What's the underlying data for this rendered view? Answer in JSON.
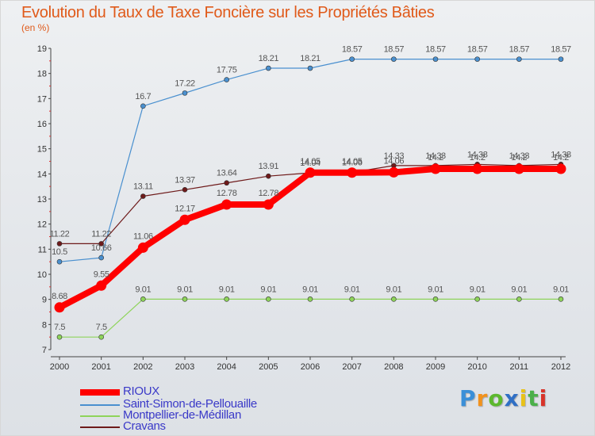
{
  "chart_data": {
    "type": "line",
    "title": "Evolution du Taux de Taxe Foncière sur les Propriétés Bâties",
    "subtitle": "(en %)",
    "x": [
      "2000",
      "2001",
      "2002",
      "2003",
      "2004",
      "2005",
      "2006",
      "2007",
      "2008",
      "2009",
      "2010",
      "2011",
      "2012"
    ],
    "ylim": [
      7,
      19
    ],
    "yticks": [
      "7",
      "8",
      "9",
      "10",
      "11",
      "12",
      "13",
      "14",
      "15",
      "16",
      "17",
      "18",
      "19"
    ],
    "series": [
      {
        "name": "RIOUX",
        "color": "#ff0000",
        "values": [
          8.68,
          9.55,
          11.06,
          12.17,
          12.78,
          12.78,
          14.05,
          14.05,
          14.06,
          14.2,
          14.2,
          14.2,
          14.2
        ],
        "labels": [
          "8.68",
          "9.55",
          "11.06",
          "12.17",
          "12.78",
          "12.78",
          "14.05",
          "14.05",
          "14.06",
          "14.2",
          "14.2",
          "14.2",
          "14.2"
        ]
      },
      {
        "name": "Saint-Simon-de-Pellouaille",
        "color": "#4a90cf",
        "values": [
          10.5,
          10.66,
          16.7,
          17.22,
          17.75,
          18.21,
          18.21,
          18.57,
          18.57,
          18.57,
          18.57,
          18.57,
          18.57
        ],
        "labels": [
          "10.5",
          "10.66",
          "16.7",
          "17.22",
          "17.75",
          "18.21",
          "18.21",
          "18.57",
          "18.57",
          "18.57",
          "18.57",
          "18.57",
          "18.57"
        ]
      },
      {
        "name": "Montpellier-de-Médillan",
        "color": "#8ed45a",
        "values": [
          7.5,
          7.5,
          9.01,
          9.01,
          9.01,
          9.01,
          9.01,
          9.01,
          9.01,
          9.01,
          9.01,
          9.01,
          9.01
        ],
        "labels": [
          "7.5",
          "7.5",
          "9.01",
          "9.01",
          "9.01",
          "9.01",
          "9.01",
          "9.01",
          "9.01",
          "9.01",
          "9.01",
          "9.01",
          "9.01"
        ]
      },
      {
        "name": "Cravans",
        "color": "#6e1a1a",
        "values": [
          11.22,
          11.22,
          13.11,
          13.37,
          13.64,
          13.91,
          14.04,
          14.06,
          14.33,
          14.33,
          14.38,
          14.33,
          14.38
        ],
        "labels": [
          "11.22",
          "11.22",
          "13.11",
          "13.37",
          "13.64",
          "13.91",
          "14.04",
          "14.06",
          "14.33",
          "14.33",
          "14.38",
          "14.33",
          "14.38"
        ]
      }
    ],
    "grid": false,
    "legend": "bottom-left"
  },
  "logo": {
    "text": "Proxiti",
    "letters": [
      "P",
      "r",
      "o",
      "x",
      "i",
      "t",
      "i"
    ],
    "colors": [
      "#3a8fd8",
      "#f2921c",
      "#5cb82e",
      "#2f6fc5",
      "#e8c21a",
      "#4ab04a",
      "#d8332a"
    ]
  }
}
